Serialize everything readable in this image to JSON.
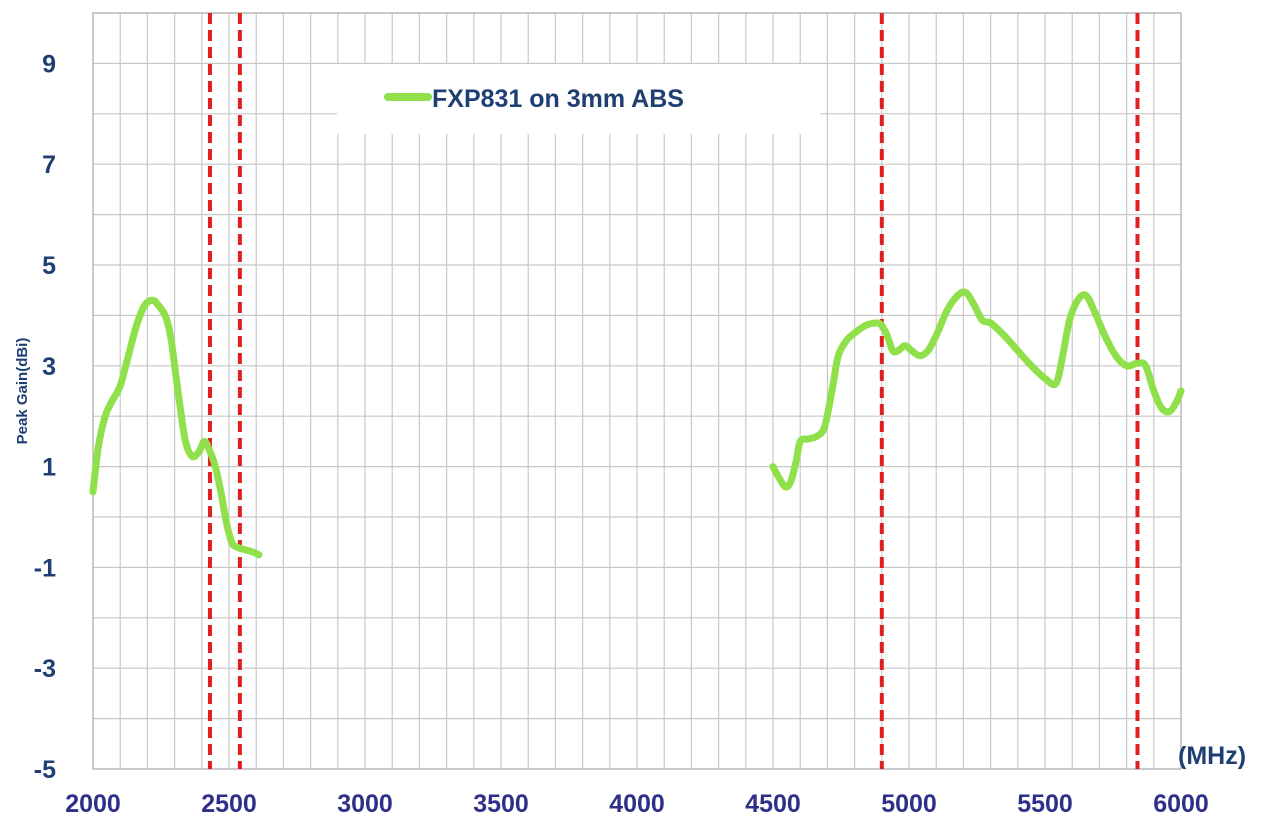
{
  "chart_data": {
    "type": "line",
    "title": "",
    "xlabel": "",
    "ylabel": "Peak Gain(dBi)",
    "x_unit_label": "(MHz)",
    "xlim": [
      2000,
      6000
    ],
    "ylim": [
      -5,
      10
    ],
    "x_ticks": [
      2000,
      2500,
      3000,
      3500,
      4000,
      4500,
      5000,
      5500,
      6000
    ],
    "y_ticks": [
      -5,
      -3,
      -1,
      1,
      3,
      5,
      7,
      9
    ],
    "x_minor_step": 100,
    "y_minor_step": 1,
    "grid": true,
    "legend_position": "top-center",
    "colors": {
      "series": "#8fe04a",
      "markers": "#e02020",
      "grid": "#c8c8c8",
      "y_tick_text": "#1f3f73",
      "x_tick_text": "#2e2f8a"
    },
    "series": [
      {
        "name": "FXP831 on 3mm ABS",
        "segments": [
          [
            [
              2000,
              0.5
            ],
            [
              2020,
              1.4
            ],
            [
              2045,
              2.0
            ],
            [
              2070,
              2.3
            ],
            [
              2100,
              2.6
            ],
            [
              2130,
              3.2
            ],
            [
              2160,
              3.8
            ],
            [
              2190,
              4.2
            ],
            [
              2220,
              4.3
            ],
            [
              2240,
              4.2
            ],
            [
              2265,
              4.0
            ],
            [
              2285,
              3.6
            ],
            [
              2300,
              3.0
            ],
            [
              2320,
              2.2
            ],
            [
              2340,
              1.5
            ],
            [
              2365,
              1.2
            ],
            [
              2390,
              1.3
            ],
            [
              2410,
              1.5
            ],
            [
              2430,
              1.3
            ],
            [
              2450,
              1.0
            ],
            [
              2470,
              0.5
            ],
            [
              2490,
              -0.1
            ],
            [
              2510,
              -0.5
            ],
            [
              2530,
              -0.6
            ],
            [
              2560,
              -0.65
            ],
            [
              2590,
              -0.7
            ],
            [
              2610,
              -0.75
            ]
          ],
          [
            [
              4500,
              1.0
            ],
            [
              4520,
              0.8
            ],
            [
              4545,
              0.6
            ],
            [
              4565,
              0.7
            ],
            [
              4585,
              1.1
            ],
            [
              4600,
              1.5
            ],
            [
              4630,
              1.55
            ],
            [
              4660,
              1.6
            ],
            [
              4690,
              1.8
            ],
            [
              4720,
              2.6
            ],
            [
              4740,
              3.2
            ],
            [
              4770,
              3.5
            ],
            [
              4800,
              3.65
            ],
            [
              4840,
              3.8
            ],
            [
              4880,
              3.85
            ],
            [
              4900,
              3.8
            ],
            [
              4920,
              3.6
            ],
            [
              4940,
              3.3
            ],
            [
              4960,
              3.3
            ],
            [
              4985,
              3.4
            ],
            [
              5010,
              3.3
            ],
            [
              5040,
              3.2
            ],
            [
              5070,
              3.3
            ],
            [
              5100,
              3.6
            ],
            [
              5140,
              4.1
            ],
            [
              5180,
              4.4
            ],
            [
              5210,
              4.45
            ],
            [
              5240,
              4.2
            ],
            [
              5270,
              3.9
            ],
            [
              5300,
              3.85
            ],
            [
              5350,
              3.6
            ],
            [
              5400,
              3.3
            ],
            [
              5450,
              3.0
            ],
            [
              5500,
              2.75
            ],
            [
              5540,
              2.65
            ],
            [
              5565,
              3.2
            ],
            [
              5590,
              3.9
            ],
            [
              5620,
              4.3
            ],
            [
              5650,
              4.4
            ],
            [
              5680,
              4.1
            ],
            [
              5720,
              3.6
            ],
            [
              5760,
              3.2
            ],
            [
              5800,
              3.0
            ],
            [
              5840,
              3.05
            ],
            [
              5870,
              3.0
            ],
            [
              5900,
              2.5
            ],
            [
              5930,
              2.15
            ],
            [
              5960,
              2.1
            ],
            [
              5985,
              2.3
            ],
            [
              6000,
              2.5
            ]
          ]
        ]
      }
    ],
    "vertical_markers": [
      2430,
      2540,
      4900,
      5840
    ]
  }
}
